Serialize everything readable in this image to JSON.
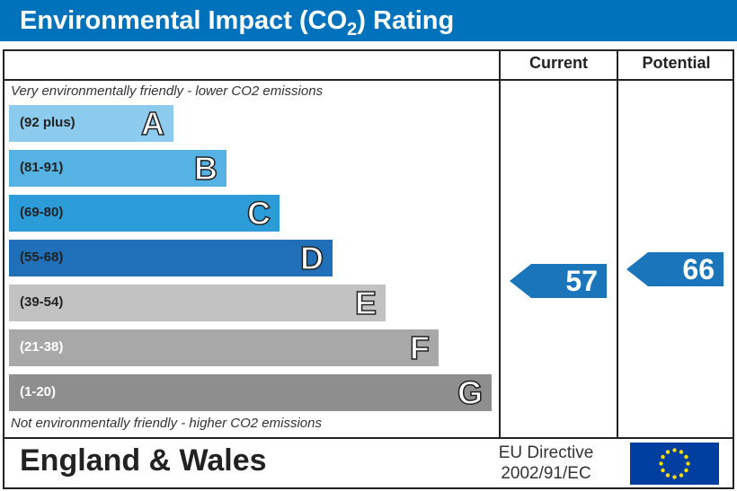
{
  "chart_data": {
    "type": "bar",
    "title": "Environmental Impact (CO2) Rating",
    "columns": [
      "Current",
      "Potential"
    ],
    "top_note": "Very environmentally friendly - lower CO2 emissions",
    "bottom_note": "Not environmentally friendly - higher CO2 emissions",
    "bands": [
      {
        "letter": "A",
        "range": "(92 plus)",
        "color": "#8ccbee",
        "text_color": "#222"
      },
      {
        "letter": "B",
        "range": "(81-91)",
        "color": "#55b2e2",
        "text_color": "#222"
      },
      {
        "letter": "C",
        "range": "(69-80)",
        "color": "#2b9cd8",
        "text_color": "#222"
      },
      {
        "letter": "D",
        "range": "(55-68)",
        "color": "#1f70b8",
        "text_color": "#222"
      },
      {
        "letter": "E",
        "range": "(39-54)",
        "color": "#c2c2c2",
        "text_color": "#222"
      },
      {
        "letter": "F",
        "range": "(21-38)",
        "color": "#a8a8a8",
        "text_color": "#fff"
      },
      {
        "letter": "G",
        "range": "(1-20)",
        "color": "#8e8e8e",
        "text_color": "#fff"
      }
    ],
    "current": 57,
    "potential": 66,
    "arrow_color": "#1a75bb"
  },
  "header": {
    "title_main": "Environmental Impact (CO",
    "title_sub": "2",
    "title_end": ") Rating"
  },
  "footer": {
    "region": "England & Wales",
    "directive_line1": "EU Directive",
    "directive_line2": "2002/91/EC"
  },
  "colors": {
    "header": "#0072bc"
  }
}
